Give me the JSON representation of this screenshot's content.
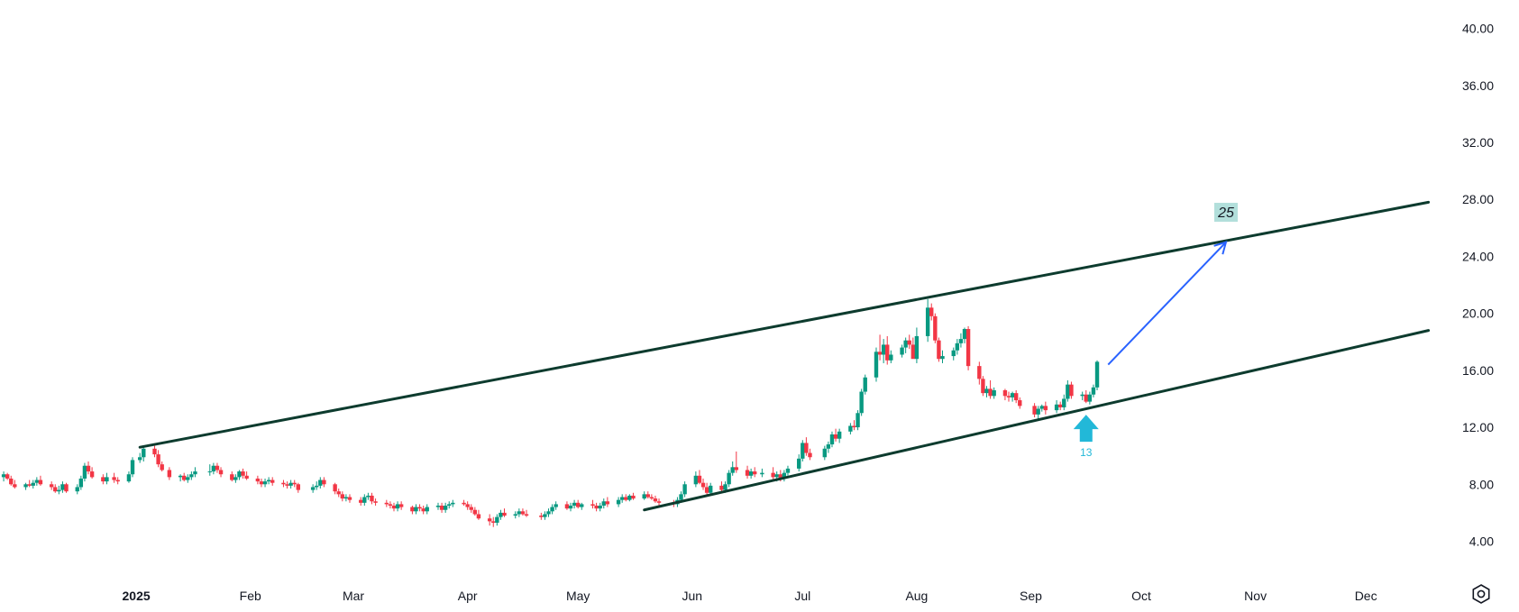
{
  "chart_data": {
    "type": "candlestick",
    "y_axis": {
      "ticks": [
        "40.00",
        "36.00",
        "32.00",
        "28.00",
        "24.00",
        "20.00",
        "16.00",
        "12.00",
        "8.00",
        "4.00"
      ],
      "ylim": [
        1.5,
        42
      ]
    },
    "x_axis": {
      "ticks": [
        "2025",
        "Feb",
        "Mar",
        "Apr",
        "May",
        "Jun",
        "Jul",
        "Aug",
        "Sep",
        "Oct",
        "Nov",
        "Dec"
      ],
      "range": [
        "2024-11-25",
        "2025-12-23"
      ]
    },
    "colors": {
      "up": "#089981",
      "down": "#f23645",
      "trendline": "#0d3b2e",
      "arrow": "#2962ff",
      "marker": "#22b8d8",
      "label_bg": "#b2dfdb"
    },
    "series": [
      {
        "x": [
          "2024-11-26",
          "2024-11-27",
          "2024-11-28",
          "2024-11-29",
          "2024-12-02",
          "2024-12-03",
          "2024-12-04",
          "2024-12-05",
          "2024-12-06",
          "2024-12-09",
          "2024-12-10",
          "2024-12-11",
          "2024-12-12",
          "2024-12-13",
          "2024-12-16",
          "2024-12-17",
          "2024-12-18",
          "2024-12-19",
          "2024-12-20",
          "2024-12-23",
          "2024-12-24",
          "2024-12-26",
          "2024-12-27",
          "2024-12-30",
          "2024-12-31",
          "2025-01-02",
          "2025-01-03",
          "2025-01-06",
          "2025-01-07",
          "2025-01-08",
          "2025-01-10",
          "2025-01-13",
          "2025-01-14",
          "2025-01-15",
          "2025-01-16",
          "2025-01-17",
          "2025-01-21",
          "2025-01-22",
          "2025-01-23",
          "2025-01-24",
          "2025-01-27",
          "2025-01-28",
          "2025-01-29",
          "2025-01-30",
          "2025-01-31"
        ],
        "open": [
          8.5,
          8.7,
          8.4,
          8.0,
          7.8,
          8.0,
          7.9,
          8.1,
          8.3,
          8.0,
          7.8,
          7.5,
          7.6,
          8.0,
          7.5,
          7.8,
          8.4,
          9.3,
          8.9,
          8.5,
          8.2,
          8.5,
          8.3,
          8.2,
          8.7,
          9.7,
          9.9,
          10.5,
          10.1,
          9.4,
          9.0,
          8.5,
          8.6,
          8.3,
          8.5,
          8.7,
          8.9,
          8.9,
          9.3,
          9.0,
          8.7,
          8.3,
          8.5,
          8.9,
          8.6
        ],
        "high": [
          8.9,
          8.8,
          8.6,
          8.3,
          8.1,
          8.3,
          8.3,
          8.5,
          8.6,
          8.2,
          8.0,
          7.9,
          8.2,
          8.1,
          8.0,
          8.6,
          9.5,
          9.6,
          9.2,
          8.7,
          8.8,
          8.8,
          8.5,
          8.9,
          9.9,
          10.2,
          10.7,
          10.7,
          10.4,
          9.6,
          9.2,
          8.7,
          8.8,
          8.7,
          8.9,
          9.2,
          9.4,
          9.5,
          9.5,
          9.2,
          8.9,
          8.7,
          9.0,
          9.1,
          8.9
        ],
        "low": [
          8.2,
          8.3,
          7.9,
          7.7,
          7.6,
          7.8,
          7.7,
          7.9,
          7.9,
          7.6,
          7.4,
          7.3,
          7.4,
          7.4,
          7.3,
          7.6,
          8.2,
          8.7,
          8.4,
          8.0,
          8.0,
          8.1,
          8.0,
          8.1,
          8.5,
          9.5,
          9.6,
          9.9,
          9.2,
          8.9,
          8.3,
          8.2,
          8.2,
          8.1,
          8.3,
          8.5,
          8.6,
          8.7,
          8.8,
          8.5,
          8.2,
          8.1,
          8.3,
          8.4,
          8.3
        ],
        "close": [
          8.7,
          8.4,
          8.0,
          7.8,
          8.0,
          7.9,
          8.1,
          8.3,
          8.0,
          7.8,
          7.5,
          7.6,
          8.0,
          7.5,
          7.8,
          8.4,
          9.3,
          8.9,
          8.5,
          8.2,
          8.5,
          8.3,
          8.2,
          8.7,
          9.7,
          9.9,
          10.5,
          10.1,
          9.4,
          9.0,
          8.5,
          8.6,
          8.3,
          8.5,
          8.7,
          8.9,
          8.9,
          9.3,
          9.0,
          8.7,
          8.3,
          8.5,
          8.9,
          8.6,
          8.4
        ]
      },
      {
        "x": [
          "2025-02-03",
          "2025-02-04",
          "2025-02-05",
          "2025-02-06",
          "2025-02-07",
          "2025-02-10",
          "2025-02-11",
          "2025-02-12",
          "2025-02-13",
          "2025-02-14",
          "2025-02-18",
          "2025-02-19",
          "2025-02-20",
          "2025-02-21",
          "2025-02-24",
          "2025-02-25",
          "2025-02-26",
          "2025-02-27",
          "2025-02-28",
          "2025-03-03",
          "2025-03-04",
          "2025-03-05",
          "2025-03-06",
          "2025-03-07",
          "2025-03-10",
          "2025-03-11",
          "2025-03-12",
          "2025-03-13",
          "2025-03-14",
          "2025-03-17",
          "2025-03-18",
          "2025-03-19",
          "2025-03-20",
          "2025-03-21",
          "2025-03-24",
          "2025-03-25",
          "2025-03-26",
          "2025-03-27",
          "2025-03-28",
          "2025-03-31"
        ],
        "open": [
          8.4,
          8.2,
          8.0,
          8.2,
          8.3,
          8.1,
          8.0,
          7.9,
          8.1,
          8.0,
          7.6,
          7.8,
          7.9,
          8.3,
          8.0,
          7.5,
          7.3,
          7.0,
          7.1,
          6.9,
          6.7,
          7.1,
          7.2,
          6.8,
          6.7,
          6.6,
          6.5,
          6.3,
          6.6,
          6.4,
          6.1,
          6.4,
          6.3,
          6.1,
          6.4,
          6.5,
          6.2,
          6.5,
          6.6,
          6.7
        ],
        "high": [
          8.6,
          8.4,
          8.4,
          8.5,
          8.5,
          8.3,
          8.2,
          8.3,
          8.3,
          8.1,
          8.0,
          8.2,
          8.5,
          8.5,
          8.1,
          7.7,
          7.5,
          7.3,
          7.3,
          7.1,
          7.3,
          7.4,
          7.4,
          7.0,
          6.9,
          6.8,
          6.7,
          6.8,
          6.8,
          6.5,
          6.6,
          6.6,
          6.5,
          6.6,
          6.7,
          6.7,
          6.7,
          6.8,
          6.9,
          6.9
        ],
        "low": [
          8.0,
          7.8,
          7.8,
          8.0,
          7.9,
          7.8,
          7.7,
          7.7,
          7.8,
          7.4,
          7.4,
          7.6,
          7.7,
          7.8,
          7.3,
          7.1,
          6.8,
          6.8,
          6.7,
          6.5,
          6.5,
          6.9,
          6.6,
          6.5,
          6.4,
          6.3,
          6.1,
          6.1,
          6.2,
          5.9,
          5.9,
          6.1,
          5.9,
          5.9,
          6.2,
          6.0,
          6.0,
          6.3,
          6.4,
          6.5
        ],
        "close": [
          8.2,
          8.0,
          8.2,
          8.3,
          8.1,
          8.0,
          7.9,
          8.1,
          8.0,
          7.6,
          7.8,
          7.9,
          8.3,
          8.0,
          7.5,
          7.3,
          7.0,
          7.1,
          6.9,
          6.7,
          7.1,
          7.2,
          6.8,
          6.7,
          6.6,
          6.5,
          6.3,
          6.6,
          6.4,
          6.1,
          6.4,
          6.3,
          6.1,
          6.4,
          6.5,
          6.2,
          6.5,
          6.6,
          6.7,
          6.6
        ]
      },
      {
        "x": [
          "2025-04-01",
          "2025-04-02",
          "2025-04-03",
          "2025-04-04",
          "2025-04-07",
          "2025-04-08",
          "2025-04-09",
          "2025-04-10",
          "2025-04-11",
          "2025-04-14",
          "2025-04-15",
          "2025-04-16",
          "2025-04-17",
          "2025-04-21",
          "2025-04-22",
          "2025-04-23",
          "2025-04-24",
          "2025-04-25",
          "2025-04-28",
          "2025-04-29",
          "2025-04-30",
          "2025-05-01",
          "2025-05-02",
          "2025-05-05",
          "2025-05-06",
          "2025-05-07",
          "2025-05-08",
          "2025-05-09",
          "2025-05-12",
          "2025-05-13",
          "2025-05-14",
          "2025-05-15",
          "2025-05-16",
          "2025-05-19",
          "2025-05-20",
          "2025-05-21",
          "2025-05-22",
          "2025-05-23",
          "2025-05-27",
          "2025-05-28",
          "2025-05-29",
          "2025-05-30"
        ],
        "open": [
          6.6,
          6.4,
          6.2,
          5.9,
          5.6,
          5.4,
          5.3,
          5.7,
          6.0,
          5.8,
          5.9,
          6.1,
          5.9,
          5.8,
          5.7,
          5.9,
          6.1,
          6.4,
          6.6,
          6.3,
          6.5,
          6.7,
          6.4,
          6.6,
          6.5,
          6.3,
          6.5,
          6.8,
          6.6,
          6.9,
          7.1,
          6.9,
          7.2,
          7.0,
          7.3,
          7.1,
          7.0,
          6.8,
          6.7,
          6.6,
          6.9,
          7.3
        ],
        "high": [
          6.8,
          6.6,
          6.4,
          6.2,
          5.9,
          5.7,
          5.9,
          6.2,
          6.3,
          6.1,
          6.3,
          6.3,
          6.2,
          6.0,
          6.1,
          6.3,
          6.6,
          6.8,
          6.8,
          6.7,
          6.9,
          6.9,
          6.7,
          6.9,
          6.7,
          6.7,
          7.0,
          7.1,
          7.1,
          7.3,
          7.3,
          7.3,
          7.4,
          7.5,
          7.5,
          7.3,
          7.2,
          7.0,
          6.9,
          7.1,
          7.5,
          8.2
        ],
        "low": [
          6.2,
          6.0,
          5.8,
          5.5,
          5.1,
          5.0,
          5.1,
          5.5,
          5.7,
          5.6,
          5.7,
          5.8,
          5.7,
          5.5,
          5.5,
          5.7,
          5.9,
          6.2,
          6.2,
          6.1,
          6.3,
          6.3,
          6.2,
          6.3,
          6.1,
          6.1,
          6.3,
          6.4,
          6.4,
          6.7,
          6.8,
          6.8,
          6.9,
          6.9,
          7.0,
          6.9,
          6.7,
          6.5,
          6.4,
          6.4,
          6.7,
          7.1
        ],
        "close": [
          6.4,
          6.2,
          5.9,
          5.6,
          5.4,
          5.3,
          5.7,
          6.0,
          5.8,
          5.9,
          6.1,
          5.9,
          5.8,
          5.7,
          5.9,
          6.1,
          6.4,
          6.6,
          6.3,
          6.5,
          6.7,
          6.4,
          6.6,
          6.5,
          6.3,
          6.5,
          6.8,
          6.6,
          6.9,
          7.1,
          6.9,
          7.2,
          7.0,
          7.3,
          7.1,
          7.0,
          6.8,
          6.7,
          6.6,
          6.9,
          7.3,
          8.0
        ]
      },
      {
        "x": [
          "2025-06-02",
          "2025-06-03",
          "2025-06-04",
          "2025-06-05",
          "2025-06-06",
          "2025-06-09",
          "2025-06-10",
          "2025-06-11",
          "2025-06-12",
          "2025-06-13",
          "2025-06-16",
          "2025-06-17",
          "2025-06-18",
          "2025-06-20",
          "2025-06-23",
          "2025-06-24",
          "2025-06-25",
          "2025-06-26",
          "2025-06-27",
          "2025-06-30",
          "2025-07-01",
          "2025-07-02",
          "2025-07-03",
          "2025-07-07",
          "2025-07-08",
          "2025-07-09",
          "2025-07-10",
          "2025-07-11",
          "2025-07-14",
          "2025-07-15",
          "2025-07-16",
          "2025-07-17",
          "2025-07-18",
          "2025-07-21",
          "2025-07-22",
          "2025-07-23",
          "2025-07-24",
          "2025-07-25",
          "2025-07-28",
          "2025-07-29",
          "2025-07-30",
          "2025-07-31"
        ],
        "open": [
          8.0,
          8.6,
          8.1,
          7.8,
          7.4,
          7.9,
          7.6,
          8.0,
          8.8,
          9.2,
          9.0,
          8.6,
          8.9,
          8.7,
          8.8,
          8.5,
          8.7,
          8.4,
          8.8,
          9.1,
          9.8,
          10.9,
          10.2,
          9.9,
          10.5,
          10.8,
          11.5,
          11.2,
          11.7,
          12.1,
          12.0,
          13.0,
          14.5,
          15.5,
          17.3,
          17.1,
          17.8,
          16.7,
          17.1,
          17.6,
          18.1,
          17.8
        ],
        "high": [
          8.9,
          9.0,
          8.4,
          8.1,
          8.1,
          8.2,
          8.2,
          9.0,
          9.6,
          10.3,
          9.3,
          9.1,
          9.2,
          9.1,
          9.2,
          8.9,
          9.0,
          9.0,
          9.3,
          10.1,
          11.1,
          11.3,
          10.5,
          10.7,
          11.0,
          11.7,
          11.9,
          11.9,
          12.3,
          12.5,
          13.2,
          14.7,
          15.7,
          17.6,
          18.5,
          18.2,
          18.4,
          17.4,
          17.8,
          18.3,
          18.5,
          18.3
        ],
        "low": [
          7.8,
          8.0,
          7.6,
          7.2,
          7.2,
          7.5,
          7.4,
          7.8,
          8.6,
          8.8,
          8.4,
          8.4,
          8.5,
          8.5,
          8.3,
          8.2,
          8.2,
          8.2,
          8.6,
          8.9,
          9.6,
          10.0,
          9.7,
          9.7,
          10.2,
          10.6,
          11.0,
          10.9,
          11.5,
          11.8,
          11.8,
          12.8,
          14.3,
          15.2,
          16.7,
          16.5,
          16.4,
          16.5,
          16.9,
          17.2,
          17.5,
          17.2
        ],
        "close": [
          8.6,
          8.1,
          7.8,
          7.4,
          7.9,
          7.6,
          8.0,
          8.8,
          9.2,
          9.0,
          8.6,
          8.9,
          8.7,
          8.8,
          8.5,
          8.7,
          8.4,
          8.8,
          9.1,
          9.8,
          10.9,
          10.2,
          9.9,
          10.5,
          10.8,
          11.5,
          11.2,
          11.7,
          12.1,
          12.0,
          13.0,
          14.5,
          15.5,
          17.3,
          17.1,
          17.8,
          16.7,
          17.1,
          17.6,
          18.1,
          17.8,
          16.8
        ]
      },
      {
        "x": [
          "2025-08-01",
          "2025-08-04",
          "2025-08-05",
          "2025-08-06",
          "2025-08-07",
          "2025-08-08",
          "2025-08-11",
          "2025-08-12",
          "2025-08-13",
          "2025-08-14",
          "2025-08-15",
          "2025-08-18",
          "2025-08-19",
          "2025-08-20",
          "2025-08-21",
          "2025-08-22",
          "2025-08-25",
          "2025-08-26",
          "2025-08-27",
          "2025-08-28",
          "2025-08-29",
          "2025-09-02",
          "2025-09-03",
          "2025-09-04",
          "2025-09-05",
          "2025-09-08",
          "2025-09-09",
          "2025-09-10",
          "2025-09-11",
          "2025-09-12",
          "2025-09-15",
          "2025-09-16",
          "2025-09-17",
          "2025-09-18",
          "2025-09-19"
        ],
        "open": [
          16.8,
          18.4,
          20.4,
          19.8,
          18.1,
          16.8,
          17.0,
          17.4,
          17.9,
          18.2,
          18.9,
          16.3,
          15.4,
          14.4,
          14.7,
          14.2,
          14.6,
          14.2,
          14.1,
          14.4,
          13.9,
          13.5,
          12.9,
          13.3,
          13.5,
          13.2,
          13.6,
          13.4,
          14.0,
          15.0,
          14.2,
          14.3,
          13.8,
          14.3,
          14.8
        ],
        "high": [
          19.0,
          21.0,
          20.7,
          20.0,
          18.3,
          17.4,
          17.6,
          18.2,
          18.6,
          19.0,
          19.1,
          16.6,
          15.6,
          14.9,
          15.3,
          14.8,
          14.7,
          14.5,
          14.5,
          14.6,
          14.1,
          13.7,
          13.5,
          13.6,
          13.8,
          13.9,
          13.8,
          14.3,
          15.3,
          15.2,
          14.5,
          14.6,
          14.5,
          15.0,
          16.7
        ],
        "low": [
          16.5,
          18.0,
          19.5,
          17.9,
          16.6,
          16.5,
          16.7,
          17.1,
          17.6,
          17.9,
          16.0,
          15.0,
          14.2,
          14.1,
          14.0,
          14.0,
          13.9,
          13.8,
          13.8,
          13.7,
          13.3,
          12.7,
          12.6,
          13.1,
          12.9,
          13.0,
          13.2,
          13.2,
          13.8,
          14.0,
          13.9,
          13.7,
          13.6,
          14.1,
          14.6
        ],
        "close": [
          18.4,
          20.4,
          19.8,
          18.1,
          16.8,
          17.0,
          17.4,
          17.9,
          18.2,
          18.9,
          16.3,
          15.4,
          14.4,
          14.7,
          14.2,
          14.6,
          14.2,
          14.1,
          14.4,
          13.9,
          13.5,
          12.9,
          13.3,
          13.5,
          13.2,
          13.6,
          13.4,
          14.0,
          15.0,
          14.2,
          14.3,
          13.8,
          14.3,
          14.8,
          16.6
        ]
      }
    ],
    "trendlines": [
      {
        "name": "upper",
        "x": [
          "2025-01-02",
          "2025-12-18"
        ],
        "y": [
          10.6,
          27.8
        ]
      },
      {
        "name": "lower",
        "x": [
          "2025-05-19",
          "2025-12-18"
        ],
        "y": [
          6.2,
          18.8
        ]
      }
    ],
    "projection_arrow": {
      "x": [
        "2025-09-22",
        "2025-10-24"
      ],
      "y": [
        16.4,
        25.0
      ]
    },
    "annotations": [
      {
        "text": "25",
        "x": "2025-10-24",
        "y": 27.0
      },
      {
        "text": "13",
        "x": "2025-09-16",
        "y": 12.0,
        "marker": "up-arrow"
      }
    ]
  }
}
